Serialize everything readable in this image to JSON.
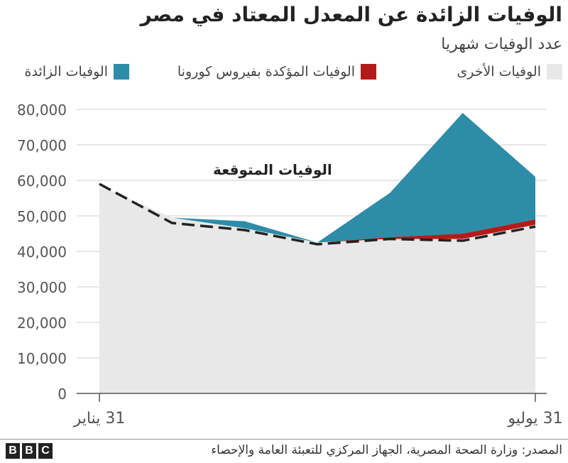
{
  "title": "الوفيات الزائدة عن المعدل المعتاد في مصر",
  "subtitle": "عدد الوفيات شهريا",
  "legend": [
    {
      "label": "الوفيات الأخرى",
      "color": "#e8e8e8"
    },
    {
      "label": "الوفيات المؤكدة بفيروس كورونا",
      "color": "#b31b1b"
    },
    {
      "label": "الوفيات الزائدة",
      "color": "#2d8ca8"
    }
  ],
  "source": "المصدر: وزارة الصحة المصرية، الجهاز المركزي للتعبئة العامة والإحصاء",
  "logo_text": [
    "B",
    "B",
    "C"
  ],
  "chart_data": {
    "type": "area",
    "x_labels": [
      "31 يناير",
      "31 يوليو"
    ],
    "months": 7,
    "y_ticks": [
      0,
      10000,
      20000,
      30000,
      40000,
      50000,
      60000,
      70000,
      80000
    ],
    "y_tick_labels": [
      "0",
      "10,000",
      "20,000",
      "30,000",
      "40,000",
      "50,000",
      "60,000",
      "70,000",
      "80,000"
    ],
    "ylim": [
      0,
      80000
    ],
    "series": [
      {
        "name": "الوفيات الأخرى",
        "values": [
          58500,
          49500,
          46500,
          42500,
          43500,
          43500,
          47500
        ]
      },
      {
        "name": "الوفيات المؤكدة بفيروس كورونا",
        "values": [
          0,
          0,
          0,
          0,
          500,
          1500,
          1500
        ]
      },
      {
        "name": "الوفيات الزائدة",
        "values": [
          0,
          0,
          2000,
          0,
          12500,
          34000,
          12000
        ]
      }
    ],
    "expected": {
      "label": "الوفيات المتوقعة",
      "values": [
        59000,
        48000,
        46000,
        42000,
        43500,
        43000,
        47000
      ]
    }
  }
}
